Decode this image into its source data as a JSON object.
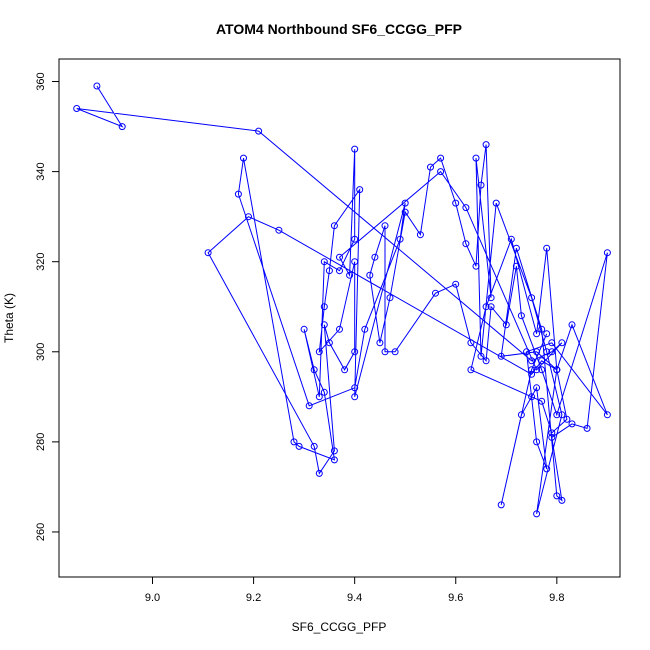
{
  "chart_data": {
    "type": "line",
    "title": "ATOM4 Northbound SF6_CCGG_PFP",
    "xlabel": "SF6_CCGG_PFP",
    "ylabel": "Theta (K)",
    "xlim": [
      8.815,
      9.925
    ],
    "ylim": [
      250,
      365
    ],
    "xticks": [
      9.0,
      9.2,
      9.4,
      9.6,
      9.8
    ],
    "xtick_labels": [
      "9.0",
      "9.2",
      "9.4",
      "9.6",
      "9.8"
    ],
    "yticks": [
      260,
      280,
      300,
      320,
      340,
      360
    ],
    "ytick_labels": [
      "260",
      "280",
      "300",
      "320",
      "340",
      "360"
    ],
    "grid": false,
    "legend": "none",
    "series_color": "#0000ff",
    "markers": "open-circle",
    "series": [
      {
        "x": [
          8.89,
          8.94,
          8.85,
          9.21,
          9.75,
          9.79,
          9.81,
          9.76,
          9.62,
          9.57,
          9.37,
          9.39,
          9.4,
          9.4,
          9.37,
          9.34,
          9.33,
          9.3,
          9.32,
          9.34,
          9.36,
          9.29,
          9.28,
          9.18,
          9.17,
          9.31,
          9.4,
          9.42,
          9.49,
          9.5,
          9.4,
          9.41,
          9.36,
          9.35,
          9.34,
          9.33,
          9.37,
          9.4,
          9.4,
          9.38,
          9.35,
          9.34,
          9.36,
          9.33,
          9.32,
          9.11,
          9.19,
          9.25,
          9.75,
          9.77,
          9.8,
          9.78,
          9.76,
          9.71,
          9.66,
          9.63,
          9.75,
          9.77,
          9.79,
          9.82,
          9.8,
          9.76,
          9.69,
          9.72,
          9.77,
          9.8,
          9.81,
          9.79,
          9.83,
          9.86,
          9.9,
          9.8,
          9.77,
          9.73,
          9.72,
          9.7,
          9.67,
          9.66,
          9.63,
          9.6,
          9.56,
          9.48,
          9.46,
          9.46,
          9.44,
          9.43,
          9.45,
          9.47,
          9.5,
          9.53,
          9.55,
          9.57,
          9.6,
          9.62,
          9.64,
          9.65,
          9.66,
          9.67,
          9.64,
          9.65,
          9.68,
          9.75,
          9.78,
          9.81,
          9.76,
          9.8,
          9.83,
          9.9,
          9.79,
          9.74,
          9.76,
          9.78,
          9.76,
          9.73,
          9.69,
          9.75,
          9.78
        ],
        "y": [
          359,
          350,
          354,
          349,
          298,
          300,
          302,
          296,
          332,
          340,
          321,
          317,
          345,
          325,
          318,
          320,
          290,
          305,
          296,
          291,
          276,
          279,
          280,
          343,
          335,
          288,
          292,
          305,
          325,
          333,
          290,
          336,
          328,
          318,
          310,
          300,
          305,
          320,
          300,
          296,
          302,
          306,
          278,
          273,
          279,
          322,
          330,
          327,
          295,
          298,
          296,
          323,
          304,
          325,
          310,
          296,
          290,
          289,
          282,
          285,
          296,
          300,
          299,
          323,
          305,
          268,
          267,
          281,
          284,
          283,
          322,
          286,
          296,
          308,
          319,
          306,
          310,
          298,
          302,
          315,
          313,
          300,
          300,
          328,
          321,
          317,
          302,
          312,
          331,
          326,
          341,
          343,
          333,
          324,
          319,
          337,
          346,
          312,
          343,
          299,
          333,
          312,
          300,
          286,
          264,
          296,
          306,
          286,
          302,
          300,
          280,
          274,
          292,
          286,
          266,
          296,
          304
        ]
      }
    ]
  }
}
